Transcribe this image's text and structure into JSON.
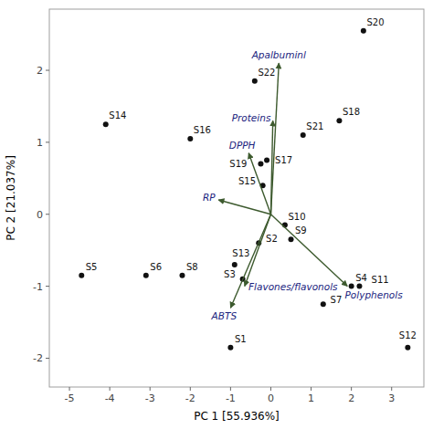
{
  "chart_data": {
    "type": "biplot",
    "xlabel": "PC 1 [55.936%]",
    "ylabel": "PC 2 [21.037%]",
    "xlim": [
      -5.5,
      3.8
    ],
    "ylim": [
      -2.4,
      2.85
    ],
    "xticks": [
      -5,
      -4,
      -3,
      -2,
      -1,
      0,
      1,
      2,
      3
    ],
    "yticks": [
      -2,
      -1,
      0,
      1,
      2
    ],
    "grid": false,
    "series": [
      {
        "type": "scatter",
        "color": "#111111",
        "labels": [
          "S1",
          "S2",
          "S3",
          "S4",
          "S5",
          "S6",
          "S7",
          "S8",
          "S9",
          "S10",
          "S11",
          "S12",
          "S13",
          "S14",
          "S15",
          "S16",
          "S17",
          "S18",
          "S19",
          "S20",
          "S21",
          "S22"
        ],
        "x": [
          -1.0,
          -0.3,
          -0.7,
          2.0,
          -4.7,
          -3.1,
          1.3,
          -2.2,
          0.5,
          0.35,
          2.2,
          3.4,
          -0.9,
          -4.1,
          -0.2,
          -2.0,
          -0.1,
          1.7,
          -0.25,
          2.3,
          0.8,
          -0.4
        ],
        "values": [
          -1.85,
          -0.4,
          -0.9,
          -1.0,
          -0.85,
          -0.85,
          -1.25,
          -0.85,
          -0.35,
          -0.15,
          -1.0,
          -1.85,
          -0.7,
          1.25,
          0.4,
          1.05,
          0.75,
          1.3,
          0.7,
          2.55,
          1.1,
          1.85
        ]
      },
      {
        "type": "vector",
        "color": "#3d5a2e",
        "labels": [
          "Apalbuminl",
          "Proteins",
          "DPPH",
          "RP",
          "Flavones/flavonols",
          "ABTS",
          "Polyphenols"
        ],
        "x": [
          0.2,
          0.05,
          -0.55,
          -1.3,
          -0.65,
          -1.0,
          1.9
        ],
        "values": [
          2.1,
          1.3,
          0.85,
          0.2,
          -1.0,
          -1.3,
          -1.0
        ]
      }
    ]
  }
}
